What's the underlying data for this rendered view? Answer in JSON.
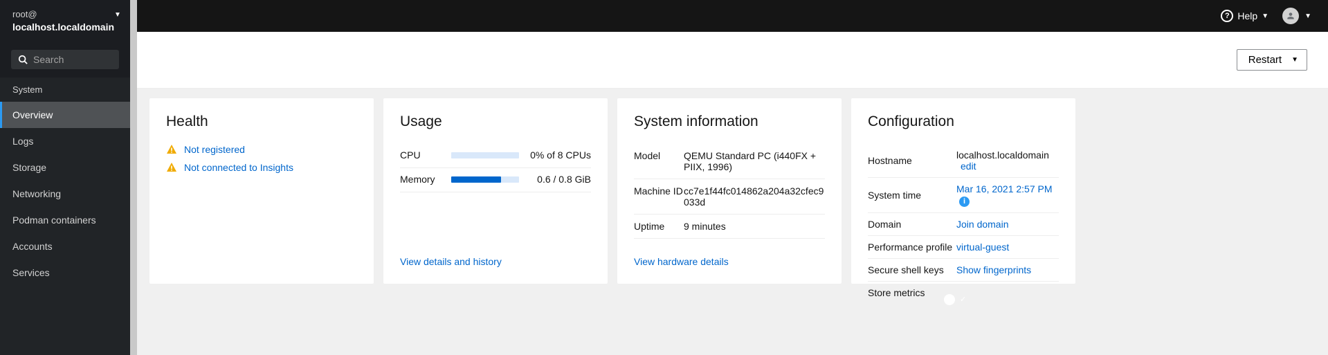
{
  "colors": {
    "sidebar_bg": "#212427",
    "sidebar_header_bg": "#1b1d21",
    "active_accent": "#2b9af3",
    "link": "#0066cc",
    "warning": "#f0ab00",
    "card_bg": "#ffffff",
    "page_bg": "#f0f0f0",
    "bar_track": "#d9e8fa",
    "bar_fill": "#0066cc",
    "toggle_on": "#0066cc"
  },
  "sidebar": {
    "user": "root@",
    "host": "localhost.localdomain",
    "search_placeholder": "Search",
    "section_title": "System",
    "items": [
      {
        "label": "Overview",
        "active": true
      },
      {
        "label": "Logs"
      },
      {
        "label": "Storage"
      },
      {
        "label": "Networking"
      },
      {
        "label": "Podman containers"
      },
      {
        "label": "Accounts"
      },
      {
        "label": "Services"
      }
    ]
  },
  "topbar": {
    "help_label": "Help"
  },
  "action_bar": {
    "restart_label": "Restart"
  },
  "health": {
    "title": "Health",
    "items": [
      {
        "label": "Not registered"
      },
      {
        "label": "Not connected to Insights"
      }
    ]
  },
  "usage": {
    "title": "Usage",
    "rows": [
      {
        "label": "CPU",
        "pct": 0,
        "text": "0% of 8 CPUs"
      },
      {
        "label": "Memory",
        "pct": 73,
        "text": "0.6 / 0.8 GiB"
      }
    ],
    "footer_link": "View details and history"
  },
  "sysinfo": {
    "title": "System information",
    "rows": [
      {
        "label": "Model",
        "value": "QEMU Standard PC (i440FX + PIIX, 1996)"
      },
      {
        "label": "Machine ID",
        "value": "cc7e1f44fc014862a204a32cfec9033d"
      },
      {
        "label": "Uptime",
        "value": "9 minutes"
      }
    ],
    "footer_link": "View hardware details"
  },
  "config": {
    "title": "Configuration",
    "rows": [
      {
        "label": "Hostname",
        "value": "localhost.localdomain",
        "edit": "edit"
      },
      {
        "label": "System time",
        "value": "Mar 16, 2021 2:57 PM",
        "link": true,
        "info": true
      },
      {
        "label": "Domain",
        "value": "Join domain",
        "link": true
      },
      {
        "label": "Performance profile",
        "value": "virtual-guest",
        "link": true
      },
      {
        "label": "Secure shell keys",
        "value": "Show fingerprints",
        "link": true
      },
      {
        "label": "Store metrics",
        "toggle": true
      }
    ]
  }
}
